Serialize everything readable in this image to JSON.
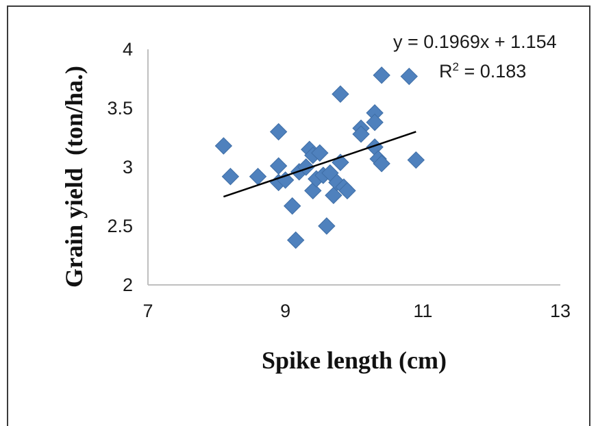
{
  "chart_data": {
    "type": "scatter",
    "xlabel": "Spike length (cm)",
    "ylabel": "Grain yield  (ton/ha.)",
    "xlim": [
      7,
      13
    ],
    "ylim": [
      2,
      4
    ],
    "x_ticks": [
      "7",
      "9",
      "11",
      "13"
    ],
    "y_ticks": [
      "2",
      "2.5",
      "3",
      "3.5",
      "4"
    ],
    "grid": false,
    "marker": "diamond",
    "marker_color": "#4f81bd",
    "trendline_color": "#000000",
    "trendline": {
      "slope": 0.1969,
      "intercept": 1.154,
      "x_range": [
        8.1,
        10.9
      ],
      "equation_label": "y = 0.1969x + 1.154",
      "r2_prefix": "R",
      "r2_sup": "2",
      "r2_value": " = 0.183"
    },
    "points": [
      {
        "x": 8.1,
        "y": 3.18
      },
      {
        "x": 8.2,
        "y": 2.92
      },
      {
        "x": 8.6,
        "y": 2.92
      },
      {
        "x": 8.9,
        "y": 3.3
      },
      {
        "x": 8.9,
        "y": 3.01
      },
      {
        "x": 8.9,
        "y": 2.87
      },
      {
        "x": 9.0,
        "y": 2.89
      },
      {
        "x": 9.1,
        "y": 2.67
      },
      {
        "x": 9.15,
        "y": 2.38
      },
      {
        "x": 9.2,
        "y": 2.96
      },
      {
        "x": 9.3,
        "y": 3.0
      },
      {
        "x": 9.35,
        "y": 3.15
      },
      {
        "x": 9.4,
        "y": 3.1
      },
      {
        "x": 9.4,
        "y": 2.8
      },
      {
        "x": 9.45,
        "y": 2.9
      },
      {
        "x": 9.5,
        "y": 3.12
      },
      {
        "x": 9.55,
        "y": 2.93
      },
      {
        "x": 9.6,
        "y": 2.5
      },
      {
        "x": 9.65,
        "y": 2.95
      },
      {
        "x": 9.7,
        "y": 2.76
      },
      {
        "x": 9.75,
        "y": 2.87
      },
      {
        "x": 9.8,
        "y": 3.04
      },
      {
        "x": 9.8,
        "y": 3.62
      },
      {
        "x": 9.85,
        "y": 2.83
      },
      {
        "x": 9.9,
        "y": 2.8
      },
      {
        "x": 10.1,
        "y": 3.33
      },
      {
        "x": 10.1,
        "y": 3.28
      },
      {
        "x": 10.3,
        "y": 3.46
      },
      {
        "x": 10.3,
        "y": 3.38
      },
      {
        "x": 10.3,
        "y": 3.17
      },
      {
        "x": 10.35,
        "y": 3.07
      },
      {
        "x": 10.4,
        "y": 3.03
      },
      {
        "x": 10.4,
        "y": 3.78
      },
      {
        "x": 10.8,
        "y": 3.77
      },
      {
        "x": 10.9,
        "y": 3.06
      }
    ]
  }
}
